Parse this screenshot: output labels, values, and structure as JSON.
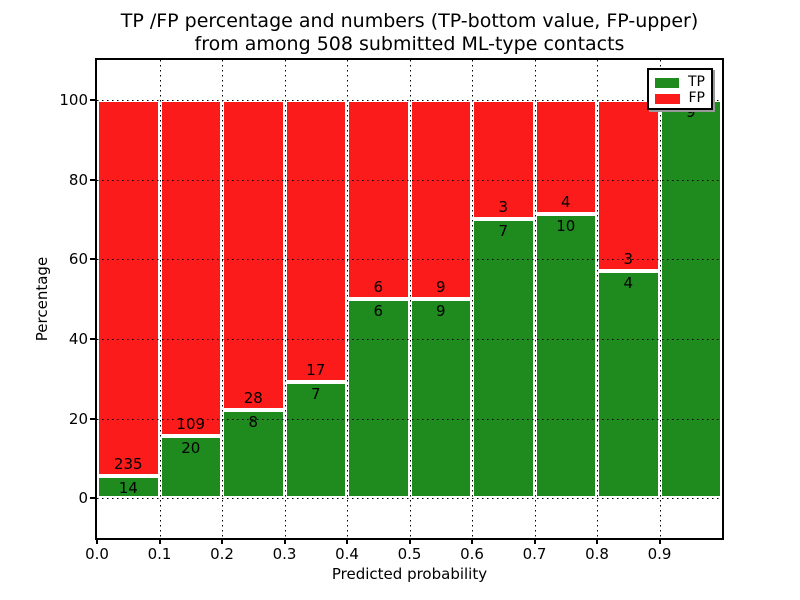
{
  "figure": {
    "title_line1": "TP /FP percentage and numbers (TP-bottom value, FP-upper)",
    "title_line2": "from among 508 submitted ML-type contacts"
  },
  "chart_data": {
    "type": "bar",
    "stacked": true,
    "normalization": "percent-of-bin-total",
    "title": "TP /FP percentage and numbers (TP-bottom value, FP-upper) from among 508 submitted ML-type contacts",
    "xlabel": "Predicted probability",
    "ylabel": "Percentage",
    "total_contacts": 508,
    "bin_width": 0.1,
    "bin_starts": [
      0.0,
      0.1,
      0.2,
      0.3,
      0.4,
      0.5,
      0.6,
      0.7,
      0.8,
      0.9
    ],
    "series": [
      {
        "name": "TP",
        "color": "#1f8b1f",
        "counts": [
          14,
          20,
          8,
          7,
          6,
          9,
          7,
          10,
          4,
          9
        ]
      },
      {
        "name": "FP",
        "color": "#fb1b1b",
        "counts": [
          235,
          109,
          28,
          17,
          6,
          9,
          3,
          4,
          3,
          0
        ]
      }
    ],
    "tp_percent": [
      5.6,
      15.5,
      22.2,
      29.2,
      50.0,
      50.0,
      70.0,
      71.4,
      57.1,
      100.0
    ],
    "ylim": [
      -10,
      110
    ],
    "yticks": [
      0,
      20,
      40,
      60,
      80,
      100
    ],
    "xtick_labels": [
      "0.0",
      "0.1",
      "0.2",
      "0.3",
      "0.4",
      "0.5",
      "0.6",
      "0.7",
      "0.8",
      "0.9"
    ],
    "grid": true,
    "grid_style": "dotted",
    "legend": {
      "position": "upper right",
      "entries": [
        {
          "label": "TP",
          "color": "#1f8b1f"
        },
        {
          "label": "FP",
          "color": "#fb1b1b"
        }
      ]
    }
  },
  "colors": {
    "tp": "#1f8b1f",
    "fp": "#fb1b1b",
    "bar_edge": "#ffffff",
    "grid": "#000000",
    "axis": "#000000",
    "background": "#ffffff",
    "text": "#000000"
  }
}
